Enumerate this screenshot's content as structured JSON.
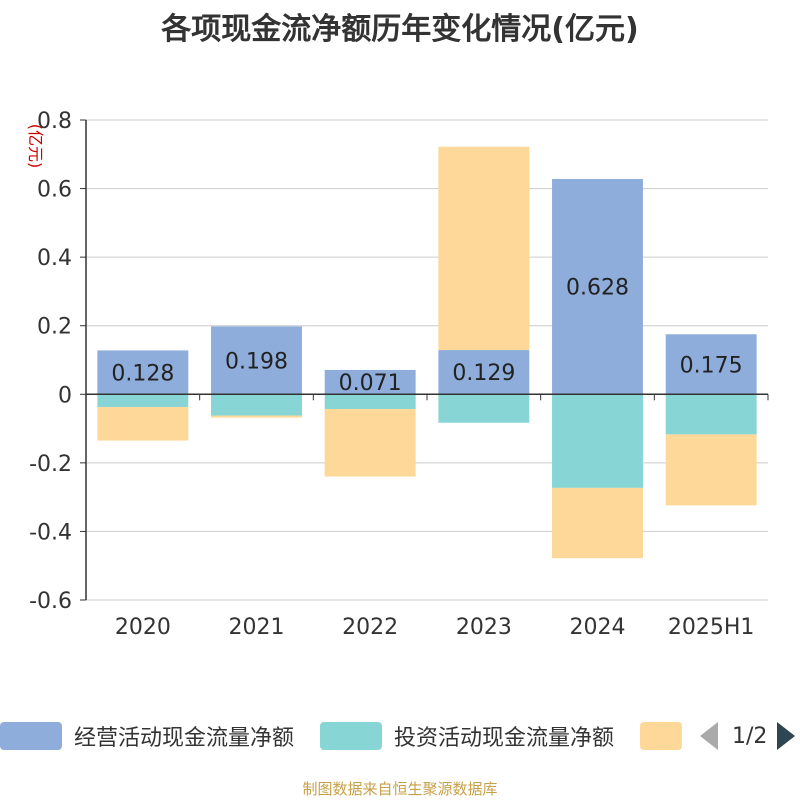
{
  "title": "各项现金流净额历年变化情况(亿元)",
  "source": "制图数据来自恒生聚源数据库",
  "legend": {
    "items": [
      {
        "label": "经营活动现金流量净额",
        "color": "#8eaddb"
      },
      {
        "label": "投资活动现金流量净额",
        "color": "#88d5d6"
      },
      {
        "label": "",
        "color": "#fdd898"
      }
    ],
    "pager": "1/2"
  },
  "chart_data": {
    "type": "bar",
    "stacked": true,
    "ylabel": "(亿元)",
    "ylim": [
      -0.6,
      0.8
    ],
    "yticks": [
      -0.6,
      -0.4,
      -0.2,
      0,
      0.2,
      0.4,
      0.6,
      0.8
    ],
    "ytick_labels": [
      "-0.6",
      "-0.4",
      "-0.2",
      "0",
      "0.2",
      "0.4",
      "0.6",
      "0.8"
    ],
    "grid": true,
    "categories": [
      "2020",
      "2021",
      "2022",
      "2023",
      "2024",
      "2025H1"
    ],
    "series": [
      {
        "name": "经营活动现金流量净额",
        "color": "#8eaddb",
        "values": [
          0.128,
          0.198,
          0.071,
          0.129,
          0.628,
          0.175
        ],
        "labels": [
          "0.128",
          "0.198",
          "0.071",
          "0.129",
          "0.628",
          "0.175"
        ]
      },
      {
        "name": "投资活动现金流量净额",
        "color": "#88d5d6",
        "values": [
          -0.037,
          -0.062,
          -0.043,
          -0.083,
          -0.273,
          -0.117
        ]
      },
      {
        "color": "#fdd898",
        "values": [
          -0.098,
          -0.006,
          -0.197,
          0.593,
          -0.205,
          -0.207
        ]
      }
    ]
  }
}
